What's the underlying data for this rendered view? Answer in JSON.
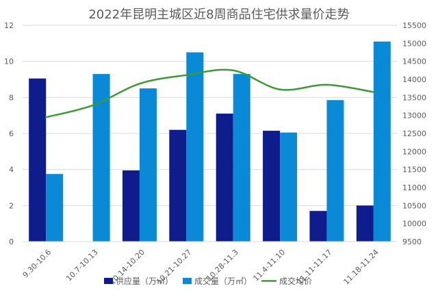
{
  "chart_data": {
    "type": "bar",
    "title": "2022年昆明主城区近8周商品住宅供求量价走势",
    "categories": [
      "9.30-10.6",
      "10.7-10.13",
      "10.14-10.20",
      "10.21-10.27",
      "10.28-11.3",
      "11.4-11.10",
      "11.11-11.17",
      "11.18-11.24"
    ],
    "series": [
      {
        "name": "供应量（万㎡）",
        "type": "bar",
        "axis": "left",
        "color": "#0f1c8c",
        "values": [
          9.05,
          0,
          3.95,
          6.2,
          7.1,
          6.15,
          1.7,
          2.0
        ]
      },
      {
        "name": "成交量（万㎡）",
        "type": "bar",
        "axis": "left",
        "color": "#0a8ad6",
        "values": [
          3.75,
          9.3,
          8.5,
          10.5,
          9.3,
          6.05,
          7.85,
          11.1
        ]
      },
      {
        "name": "成交均价",
        "type": "line",
        "axis": "right",
        "color": "#3a9a34",
        "values": [
          12950,
          13280,
          13880,
          14120,
          14250,
          13720,
          13850,
          13650
        ]
      }
    ],
    "y_left": {
      "min": 0,
      "max": 12,
      "ticks": [
        0,
        2,
        4,
        6,
        8,
        10,
        12
      ]
    },
    "y_right": {
      "min": 9500,
      "max": 15500,
      "ticks": [
        9500,
        10000,
        10500,
        11000,
        11500,
        12000,
        12500,
        13000,
        13500,
        14000,
        14500,
        15000,
        15500
      ]
    },
    "grid": true,
    "legend_position": "bottom"
  }
}
